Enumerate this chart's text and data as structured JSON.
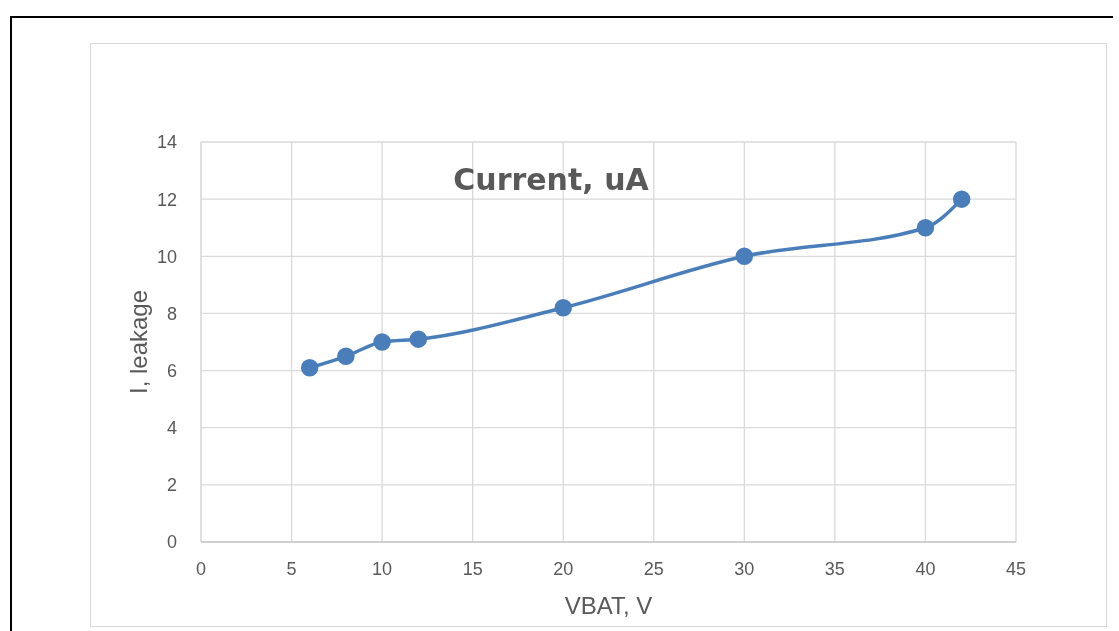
{
  "chart_data": {
    "type": "line",
    "title": "Current, uA",
    "xlabel": "VBAT, V",
    "ylabel": "I, leakage",
    "x": [
      6,
      8,
      10,
      12,
      20,
      30,
      40,
      42
    ],
    "series": [
      {
        "color": "#4a7ebb",
        "values": [
          6.1,
          6.5,
          7.0,
          7.1,
          8.2,
          10,
          11,
          12
        ]
      }
    ],
    "xlim": [
      0,
      45
    ],
    "xticks": [
      0,
      5,
      10,
      15,
      20,
      25,
      30,
      35,
      40,
      45
    ],
    "ylim": [
      0,
      14
    ],
    "yticks": [
      0,
      2,
      4,
      6,
      8,
      10,
      12,
      14
    ],
    "grid": true,
    "marker": "circle",
    "line_style": "solid"
  }
}
